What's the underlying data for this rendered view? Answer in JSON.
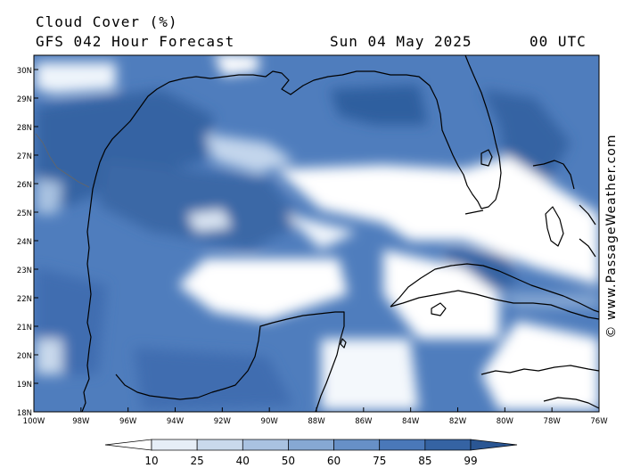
{
  "title": "Cloud Cover (%)",
  "subtitle": "GFS 042 Hour Forecast",
  "date": "Sun 04 May 2025",
  "time": "00 UTC",
  "credit": "© www.PassageWeather.com",
  "map": {
    "lat_labels": [
      "30N",
      "29N",
      "28N",
      "27N",
      "26N",
      "25N",
      "24N",
      "23N",
      "22N",
      "21N",
      "20N",
      "19N",
      "18N"
    ],
    "lon_labels": [
      "100W",
      "98W",
      "96W",
      "94W",
      "92W",
      "90W",
      "88W",
      "86W",
      "84W",
      "82W",
      "80W",
      "78W",
      "76W"
    ]
  },
  "legend": {
    "tick_labels": [
      "10",
      "25",
      "40",
      "50",
      "60",
      "75",
      "85",
      "99"
    ],
    "colors": [
      "#ffffff",
      "#e6eef7",
      "#c9d9ec",
      "#a9c2e1",
      "#86a8d3",
      "#6790c7",
      "#4a78b9",
      "#3563a3",
      "#2a5693"
    ]
  },
  "colors": {
    "low_cloud": "#ffffff",
    "high_cloud": "#3a66a8",
    "coastline": "#000000"
  }
}
